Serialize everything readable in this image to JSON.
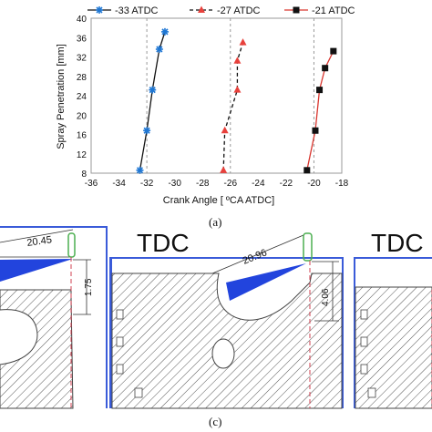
{
  "chart_data": {
    "type": "line",
    "xlabel": "Crank Angle [ ºCA ATDC]",
    "ylabel": "Spray Penetration [mm]",
    "xlim": [
      -36,
      -18
    ],
    "ylim": [
      8,
      40
    ],
    "x_ticks": [
      -36,
      -34,
      -32,
      -30,
      -28,
      -26,
      -24,
      -22,
      -20,
      -18
    ],
    "y_ticks": [
      8,
      12,
      16,
      20,
      24,
      28,
      32,
      36,
      40
    ],
    "grid": "vertical dashed lines at injection timings",
    "legend": "top",
    "series": [
      {
        "name": "-33 ATDC",
        "color": "#1f77d4",
        "line_color": "#111111",
        "line_style": "solid",
        "marker": "asterisk",
        "points": [
          {
            "x": -32.5,
            "y": 8.6
          },
          {
            "x": -32.0,
            "y": 16.8
          },
          {
            "x": -31.6,
            "y": 25.2
          },
          {
            "x": -31.1,
            "y": 33.6
          },
          {
            "x": -30.7,
            "y": 37.2
          }
        ]
      },
      {
        "name": "-27 ATDC",
        "color": "#e8413c",
        "line_color": "#111111",
        "line_style": "dashed",
        "marker": "triangle",
        "points": [
          {
            "x": -26.5,
            "y": 8.6
          },
          {
            "x": -26.4,
            "y": 16.8
          },
          {
            "x": -25.5,
            "y": 25.2
          },
          {
            "x": -25.5,
            "y": 31.2
          },
          {
            "x": -25.1,
            "y": 35.0
          }
        ]
      },
      {
        "name": "-21 ATDC",
        "color": "#111111",
        "line_color": "#d9362f",
        "line_style": "solid",
        "marker": "square",
        "points": [
          {
            "x": -20.5,
            "y": 8.6
          },
          {
            "x": -19.9,
            "y": 16.8
          },
          {
            "x": -19.6,
            "y": 25.2
          },
          {
            "x": -19.2,
            "y": 29.7
          },
          {
            "x": -18.6,
            "y": 33.2
          }
        ]
      }
    ]
  },
  "captions": {
    "top": "(a)",
    "bottom": "(c)"
  },
  "diagram": {
    "left": {
      "dimension_spray": "20.45",
      "dimension_vertical": "1.75"
    },
    "middle": {
      "label": "TDC",
      "dimension_spray": "20.96",
      "dimension_vertical": "4.06"
    },
    "right": {
      "label": "TDC"
    }
  }
}
